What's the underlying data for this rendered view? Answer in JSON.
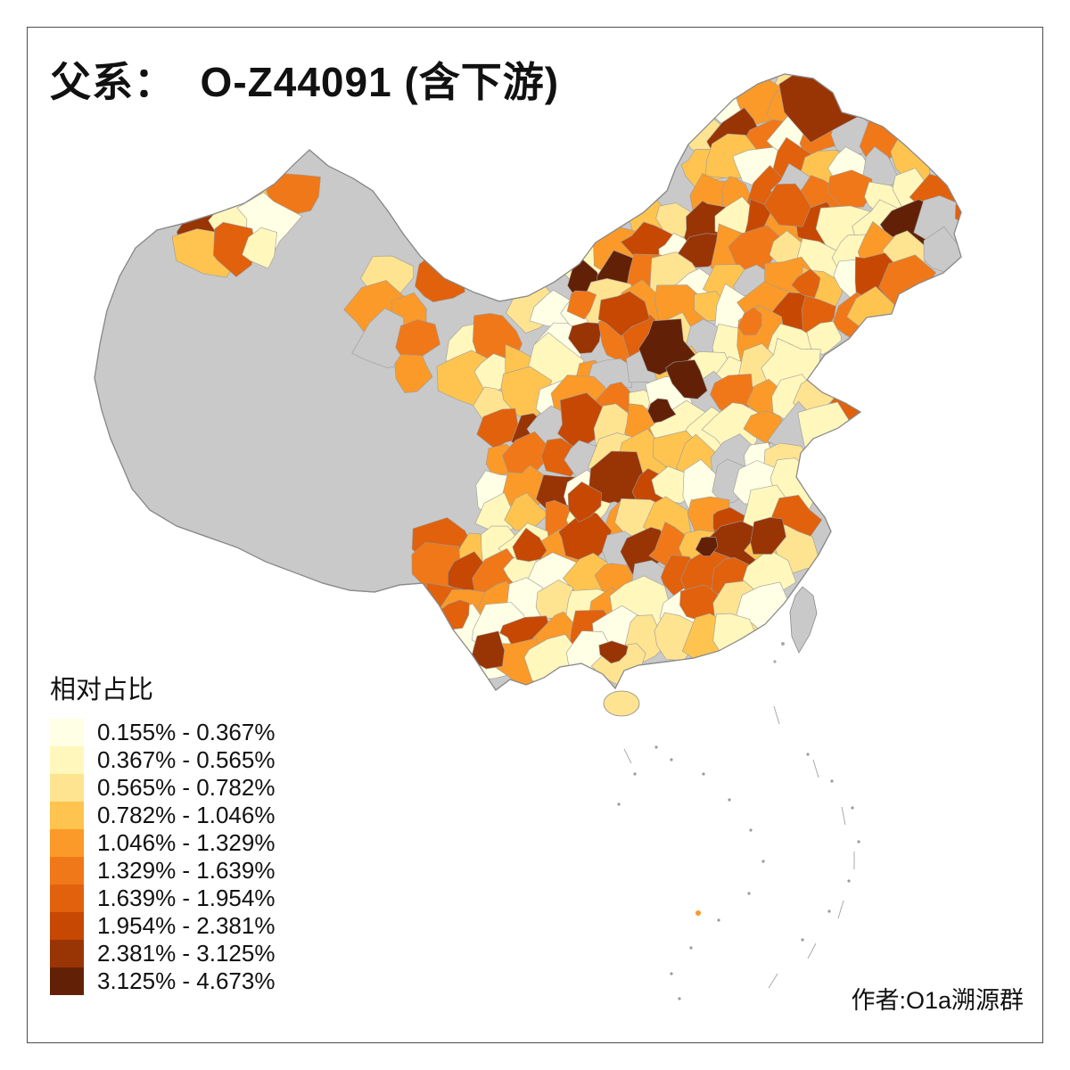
{
  "title": "父系：  O-Z44091 (含下游)",
  "credit": "作者:O1a溯源群",
  "legend": {
    "title": "相对占比",
    "no_data_color": "#C9C9C9",
    "breaks_percent": [
      0.155,
      0.367,
      0.565,
      0.782,
      1.046,
      1.329,
      1.639,
      1.954,
      2.381,
      3.125,
      4.673
    ],
    "classes": [
      {
        "label": "0.155% - 0.367%",
        "color": "#FFFFE5"
      },
      {
        "label": "0.367% - 0.565%",
        "color": "#FFF7BC"
      },
      {
        "label": "0.565% - 0.782%",
        "color": "#FEE391"
      },
      {
        "label": "0.782% - 1.046%",
        "color": "#FEC44F"
      },
      {
        "label": "1.046% - 1.329%",
        "color": "#FB9A29"
      },
      {
        "label": "1.329% - 1.639%",
        "color": "#F07818"
      },
      {
        "label": "1.639% - 1.954%",
        "color": "#E1610C"
      },
      {
        "label": "1.954% - 2.381%",
        "color": "#C64802"
      },
      {
        "label": "2.381% - 3.125%",
        "color": "#993404"
      },
      {
        "label": "3.125% - 4.673%",
        "color": "#622106"
      }
    ]
  },
  "map": {
    "subject": "China prefecture-level choropleth of relative share of paternal lineage O-Z44091 (incl. downstream)",
    "outline_color": "#8A8A8A",
    "cell_border_color": "#9B9B9B",
    "background": "#FFFFFF"
  }
}
